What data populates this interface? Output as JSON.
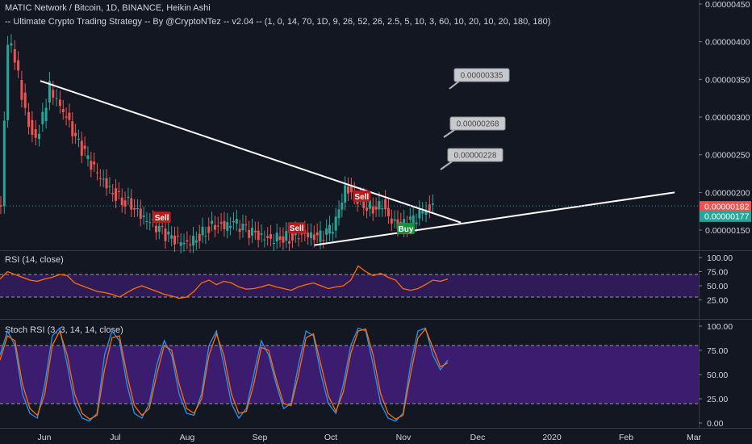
{
  "header": {
    "title": "MATIC Network / Bitcoin, 1D, BINANCE, Heikin Ashi",
    "strategy": "-- Ultimate Crypto Trading Strategy -- By @CryptoNTez -- v2.04 -- (1, 0, 14, 70, 1D, 9, 26, 52, 26, 2.5, 5, 10, 3, 60, 10, 20, 10, 20, 180, 180)"
  },
  "colors": {
    "background": "#131722",
    "up": "#26a69a",
    "down": "#ef5350",
    "sell_tag": "#b71c1c",
    "buy_tag": "#1b8e3d",
    "rsi_band": "#2f1b58",
    "stoch_band": "#3b1c6e",
    "rsi_line": "#ff6d00",
    "stoch_k": "#2196f3",
    "stoch_d": "#ff6d00"
  },
  "chart_data": [
    {
      "type": "candlestick",
      "title": "MATIC Network / Bitcoin, 1D, BINANCE, Heikin Ashi",
      "y_axis_ticks": [
        "0.00000450",
        "0.00000400",
        "0.00000350",
        "0.00000300",
        "0.00000250",
        "0.00000200",
        "0.00000150"
      ],
      "ylim": [
        1.3e-06,
        4.5e-06
      ],
      "x_axis_ticks": [
        "Jun",
        "Jul",
        "Aug",
        "Sep",
        "Oct",
        "Nov",
        "Dec",
        "2020",
        "Feb",
        "Mar"
      ],
      "last_price_labels": [
        {
          "value": "0.00000182",
          "color": "#ef5350"
        },
        {
          "value": "0.00000177",
          "color": "#26a69a"
        }
      ],
      "signals": [
        {
          "label": "Sell",
          "date": "2019-07-24",
          "price": 1.67e-06
        },
        {
          "label": "Sell",
          "date": "2019-09-20",
          "price": 1.53e-06
        },
        {
          "label": "Sell",
          "date": "2019-10-18",
          "price": 1.95e-06
        },
        {
          "label": "Buy",
          "date": "2019-11-06",
          "price": 1.52e-06
        }
      ],
      "target_callouts": [
        "0.00000335",
        "0.00000268",
        "0.00000228"
      ],
      "trendlines": [
        {
          "from": [
            "2019-06-02",
            3.48e-06
          ],
          "to": [
            "2019-11-30",
            1.6e-06
          ]
        },
        {
          "from": [
            "2019-09-28",
            1.3e-06
          ],
          "to": [
            "2020-03-01",
            2e-06
          ]
        }
      ],
      "close_series": [
        [
          "2019-05-14",
          1.8e-06
        ],
        [
          "2019-05-17",
          4e-06
        ],
        [
          "2019-05-20",
          3.8e-06
        ],
        [
          "2019-05-23",
          3.3e-06
        ],
        [
          "2019-05-26",
          2.9e-06
        ],
        [
          "2019-05-29",
          2.7e-06
        ],
        [
          "2019-06-01",
          3e-06
        ],
        [
          "2019-06-04",
          3.4e-06
        ],
        [
          "2019-06-07",
          3.2e-06
        ],
        [
          "2019-06-10",
          3e-06
        ],
        [
          "2019-06-14",
          2.7e-06
        ],
        [
          "2019-06-18",
          2.5e-06
        ],
        [
          "2019-06-22",
          2.3e-06
        ],
        [
          "2019-06-26",
          2.15e-06
        ],
        [
          "2019-06-30",
          2e-06
        ],
        [
          "2019-07-04",
          1.9e-06
        ],
        [
          "2019-07-08",
          1.85e-06
        ],
        [
          "2019-07-12",
          1.7e-06
        ],
        [
          "2019-07-16",
          1.6e-06
        ],
        [
          "2019-07-20",
          1.5e-06
        ],
        [
          "2019-07-24",
          1.4e-06
        ],
        [
          "2019-07-28",
          1.35e-06
        ],
        [
          "2019-08-01",
          1.33e-06
        ],
        [
          "2019-08-05",
          1.4e-06
        ],
        [
          "2019-08-09",
          1.5e-06
        ],
        [
          "2019-08-13",
          1.58e-06
        ],
        [
          "2019-08-17",
          1.55e-06
        ],
        [
          "2019-08-21",
          1.6e-06
        ],
        [
          "2019-08-25",
          1.52e-06
        ],
        [
          "2019-08-29",
          1.45e-06
        ],
        [
          "2019-09-02",
          1.4e-06
        ],
        [
          "2019-09-06",
          1.38e-06
        ],
        [
          "2019-09-10",
          1.42e-06
        ],
        [
          "2019-09-14",
          1.4e-06
        ],
        [
          "2019-09-18",
          1.45e-06
        ],
        [
          "2019-09-22",
          1.43e-06
        ],
        [
          "2019-09-26",
          1.4e-06
        ],
        [
          "2019-09-30",
          1.45e-06
        ],
        [
          "2019-10-04",
          1.6e-06
        ],
        [
          "2019-10-08",
          2.05e-06
        ],
        [
          "2019-10-12",
          1.95e-06
        ],
        [
          "2019-10-16",
          1.85e-06
        ],
        [
          "2019-10-20",
          1.8e-06
        ],
        [
          "2019-10-24",
          1.85e-06
        ],
        [
          "2019-10-28",
          1.6e-06
        ],
        [
          "2019-11-01",
          1.55e-06
        ],
        [
          "2019-11-05",
          1.6e-06
        ],
        [
          "2019-11-09",
          1.7e-06
        ],
        [
          "2019-11-13",
          1.78e-06
        ],
        [
          "2019-11-16",
          1.82e-06
        ]
      ]
    },
    {
      "type": "line",
      "title": "RSI (14, close)",
      "y_axis_ticks": [
        "100.00",
        "75.00",
        "50.00",
        "25.00"
      ],
      "ylim": [
        0,
        100
      ],
      "band": [
        30,
        70
      ],
      "series": [
        {
          "values": [
            62,
            75,
            70,
            65,
            60,
            58,
            62,
            65,
            70,
            68,
            55,
            50,
            45,
            40,
            38,
            35,
            30,
            38,
            45,
            50,
            45,
            40,
            35,
            32,
            28,
            30,
            40,
            55,
            60,
            52,
            58,
            55,
            48,
            44,
            45,
            48,
            52,
            48,
            45,
            42,
            48,
            52,
            55,
            50,
            45,
            48,
            50,
            60,
            85,
            75,
            68,
            72,
            65,
            60,
            45,
            42,
            45,
            52,
            60,
            58,
            62
          ]
        }
      ]
    },
    {
      "type": "line",
      "title": "Stoch RSI (3, 3, 14, 14, close)",
      "y_axis_ticks": [
        "100.00",
        "75.00",
        "50.00",
        "25.00",
        "0.00"
      ],
      "ylim": [
        0,
        100
      ],
      "band": [
        20,
        80
      ],
      "series": [
        {
          "values": [
            70,
            95,
            80,
            30,
            10,
            5,
            40,
            90,
            98,
            60,
            20,
            5,
            2,
            10,
            70,
            95,
            85,
            40,
            10,
            5,
            20,
            60,
            85,
            70,
            30,
            10,
            8,
            30,
            80,
            95,
            60,
            20,
            5,
            15,
            50,
            85,
            70,
            40,
            15,
            20,
            60,
            95,
            90,
            50,
            20,
            10,
            40,
            80,
            98,
            95,
            60,
            20,
            5,
            2,
            10,
            60,
            95,
            98,
            70,
            55,
            65
          ]
        },
        {
          "values": [
            65,
            90,
            85,
            40,
            15,
            8,
            30,
            80,
            95,
            70,
            30,
            10,
            4,
            8,
            55,
            88,
            90,
            50,
            18,
            8,
            15,
            50,
            80,
            75,
            40,
            15,
            10,
            25,
            70,
            92,
            70,
            30,
            10,
            12,
            40,
            78,
            75,
            45,
            20,
            18,
            50,
            88,
            92,
            60,
            28,
            12,
            32,
            72,
            95,
            97,
            70,
            30,
            10,
            4,
            8,
            50,
            88,
            97,
            78,
            58,
            62
          ]
        }
      ]
    }
  ]
}
